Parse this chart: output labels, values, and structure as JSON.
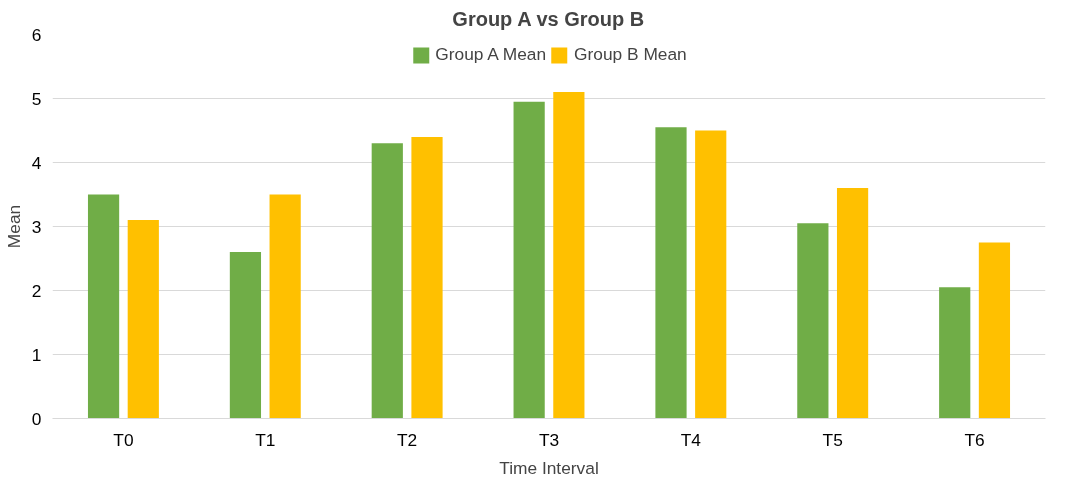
{
  "chart_data": {
    "type": "bar",
    "title": "Group A vs Group B",
    "xlabel": "Time Interval",
    "ylabel": "Mean",
    "categories": [
      "T0",
      "T1",
      "T2",
      "T3",
      "T4",
      "T5",
      "T6"
    ],
    "series": [
      {
        "name": "Group A Mean",
        "color": "#70ad47",
        "values": [
          3.5,
          2.6,
          4.3,
          4.95,
          4.55,
          3.05,
          2.05
        ]
      },
      {
        "name": "Group B Mean",
        "color": "#ffc000",
        "values": [
          3.1,
          3.5,
          4.4,
          5.1,
          4.5,
          3.6,
          2.75
        ]
      }
    ],
    "ylim": [
      0,
      6
    ],
    "yticks": [
      0,
      1,
      2,
      3,
      4,
      5,
      6
    ],
    "grid": "y",
    "legend": "top"
  }
}
